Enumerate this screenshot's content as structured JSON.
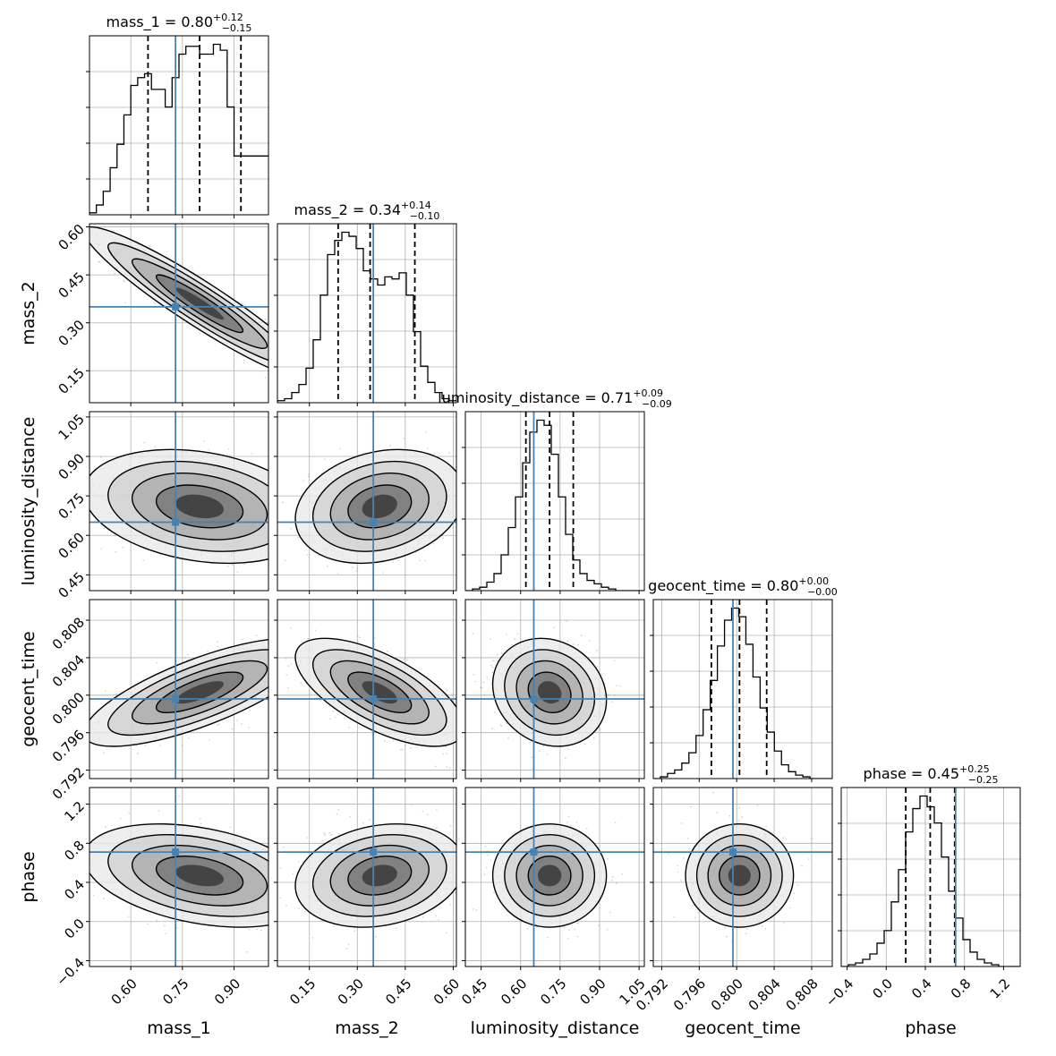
{
  "chart_data": {
    "type": "corner",
    "parameters": [
      "mass_1",
      "mass_2",
      "luminosity_distance",
      "geocent_time",
      "phase"
    ],
    "truths": {
      "mass_1": 0.73,
      "mass_2": 0.35,
      "luminosity_distance": 0.65,
      "geocent_time": 0.7996,
      "phase": 0.71
    },
    "truth_color": "#4682b4",
    "grid": true,
    "diagonal": [
      {
        "param": "mass_1",
        "title": {
          "name": "mass_1",
          "median": "0.80",
          "plus": "+0.12",
          "minus": "−0.15"
        },
        "range": [
          0.48,
          1.0
        ],
        "quantiles": [
          0.65,
          0.8,
          0.92
        ],
        "bin_edges": [
          0.48,
          0.5,
          0.52,
          0.54,
          0.56,
          0.58,
          0.6,
          0.62,
          0.64,
          0.66,
          0.68,
          0.7,
          0.72,
          0.74,
          0.76,
          0.78,
          0.8,
          0.82,
          0.84,
          0.86,
          0.88,
          0.9,
          0.92,
          0.94,
          0.96,
          0.98,
          1.0
        ],
        "counts": [
          0.01,
          0.05,
          0.12,
          0.24,
          0.36,
          0.51,
          0.66,
          0.7,
          0.72,
          0.64,
          0.64,
          0.55,
          0.7,
          0.82,
          0.86,
          0.86,
          0.82,
          0.82,
          0.87,
          0.84,
          0.55,
          0.3,
          0.3,
          0.3,
          0.3,
          0.3
        ]
      },
      {
        "param": "mass_2",
        "title": {
          "name": "mass_2",
          "median": "0.34",
          "plus": "+0.14",
          "minus": "−0.10"
        },
        "range": [
          0.05,
          0.61
        ],
        "quantiles": [
          0.24,
          0.34,
          0.48
        ],
        "bin_edges": [
          0.05,
          0.0724,
          0.0948,
          0.1172,
          0.1396,
          0.162,
          0.1844,
          0.2068,
          0.2292,
          0.2516,
          0.274,
          0.2964,
          0.3188,
          0.3412,
          0.3636,
          0.386,
          0.4084,
          0.4308,
          0.4532,
          0.4756,
          0.498,
          0.5204,
          0.5428,
          0.5652,
          0.5876,
          0.61
        ],
        "counts": [
          0.01,
          0.02,
          0.05,
          0.09,
          0.17,
          0.31,
          0.53,
          0.73,
          0.8,
          0.84,
          0.82,
          0.76,
          0.65,
          0.61,
          0.58,
          0.62,
          0.61,
          0.64,
          0.53,
          0.35,
          0.18,
          0.1,
          0.05,
          0.02,
          0.01
        ]
      },
      {
        "param": "luminosity_distance",
        "title": {
          "name": "luminosity_distance",
          "median": "0.71",
          "plus": "+0.09",
          "minus": "−0.09"
        },
        "range": [
          0.39,
          1.07
        ],
        "quantiles": [
          0.62,
          0.71,
          0.8
        ],
        "bin_edges": [
          0.39,
          0.4172,
          0.4444,
          0.4716,
          0.4988,
          0.526,
          0.5532,
          0.5804,
          0.6076,
          0.6348,
          0.662,
          0.6892,
          0.7164,
          0.7436,
          0.7708,
          0.798,
          0.8252,
          0.8524,
          0.8796,
          0.9068,
          0.934,
          0.9612,
          0.9884,
          1.0156,
          1.0428,
          1.07
        ],
        "counts": [
          0.0,
          0.01,
          0.02,
          0.05,
          0.1,
          0.21,
          0.37,
          0.55,
          0.75,
          0.93,
          1.0,
          0.97,
          0.8,
          0.55,
          0.33,
          0.18,
          0.1,
          0.06,
          0.04,
          0.02,
          0.01,
          0.0,
          0.0,
          0.0,
          0.0
        ]
      },
      {
        "param": "geocent_time",
        "title": {
          "name": "geocent_time",
          "median": "0.80",
          "plus": "+0.00",
          "minus": "−0.00"
        },
        "range": [
          0.7911,
          0.8102
        ],
        "quantiles": [
          0.7973,
          0.8003,
          0.8032
        ],
        "bin_edges": [
          0.7911,
          0.79186,
          0.79262,
          0.79338,
          0.79414,
          0.7949,
          0.79566,
          0.79642,
          0.79718,
          0.79794,
          0.7987,
          0.79946,
          0.80022,
          0.80098,
          0.80174,
          0.8025,
          0.80326,
          0.80402,
          0.80478,
          0.80554,
          0.8063,
          0.80706,
          0.80782,
          0.80858,
          0.80934,
          0.8101
        ],
        "counts": [
          0.0,
          0.01,
          0.03,
          0.05,
          0.09,
          0.15,
          0.25,
          0.4,
          0.57,
          0.77,
          0.92,
          0.99,
          0.94,
          0.78,
          0.59,
          0.41,
          0.27,
          0.16,
          0.08,
          0.04,
          0.02,
          0.01,
          0.0,
          0.0,
          0.0
        ]
      },
      {
        "param": "phase",
        "title": {
          "name": "phase",
          "median": "0.45",
          "plus": "+0.25",
          "minus": "−0.25"
        },
        "range": [
          -0.46,
          1.37
        ],
        "quantiles": [
          0.2,
          0.45,
          0.7
        ],
        "bin_edges": [
          -0.46,
          -0.3868,
          -0.3136,
          -0.2404,
          -0.1672,
          -0.094,
          -0.0208,
          0.0524,
          0.1256,
          0.1988,
          0.272,
          0.3452,
          0.4184,
          0.4916,
          0.5648,
          0.638,
          0.7112,
          0.7844,
          0.8576,
          0.9308,
          1.004,
          1.0772,
          1.1504,
          1.2236,
          1.2968,
          1.37
        ],
        "counts": [
          0.0,
          0.01,
          0.02,
          0.04,
          0.07,
          0.13,
          0.2,
          0.36,
          0.54,
          0.75,
          0.88,
          0.95,
          0.89,
          0.8,
          0.61,
          0.42,
          0.27,
          0.15,
          0.08,
          0.04,
          0.02,
          0.01,
          0.0,
          0.0,
          0.0
        ]
      }
    ],
    "ticks": {
      "mass_1": {
        "values": [
          0.6,
          0.75,
          0.9
        ],
        "labels": [
          "0.60",
          "0.75",
          "0.90"
        ]
      },
      "mass_2": {
        "values": [
          0.15,
          0.3,
          0.45,
          0.6
        ],
        "labels": [
          "0.15",
          "0.30",
          "0.45",
          "0.60"
        ]
      },
      "luminosity_distance": {
        "values": [
          0.45,
          0.6,
          0.75,
          0.9,
          1.05
        ],
        "labels": [
          "0.45",
          "0.60",
          "0.75",
          "0.90",
          "1.05"
        ]
      },
      "geocent_time": {
        "values": [
          0.792,
          0.796,
          0.8,
          0.804,
          0.808
        ],
        "labels": [
          "0.792",
          "0.796",
          "0.800",
          "0.804",
          "0.808"
        ]
      },
      "phase": {
        "values": [
          -0.4,
          0.0,
          0.4,
          0.8,
          1.2
        ],
        "labels": [
          "−0.4",
          "0.0",
          "0.4",
          "0.8",
          "1.2"
        ]
      }
    },
    "axis_labels": {
      "mass_1": "mass_1",
      "mass_2": "mass_2",
      "luminosity_distance": "luminosity_distance",
      "geocent_time": "geocent_time",
      "phase": "phase"
    },
    "pairs": [
      {
        "x": "mass_1",
        "y": "mass_2",
        "center": [
          0.8,
          0.36
        ],
        "sd": [
          0.14,
          0.1
        ],
        "rho": -0.94
      },
      {
        "x": "mass_1",
        "y": "luminosity_distance",
        "center": [
          0.8,
          0.71
        ],
        "sd": [
          0.14,
          0.09
        ],
        "rho": -0.25
      },
      {
        "x": "mass_2",
        "y": "luminosity_distance",
        "center": [
          0.37,
          0.71
        ],
        "sd": [
          0.11,
          0.09
        ],
        "rho": 0.22
      },
      {
        "x": "mass_1",
        "y": "geocent_time",
        "center": [
          0.8,
          0.8003
        ],
        "sd": [
          0.14,
          0.0024
        ],
        "rho": 0.75
      },
      {
        "x": "mass_2",
        "y": "geocent_time",
        "center": [
          0.37,
          0.8003
        ],
        "sd": [
          0.11,
          0.0024
        ],
        "rho": -0.65
      },
      {
        "x": "luminosity_distance",
        "y": "geocent_time",
        "center": [
          0.71,
          0.8003
        ],
        "sd": [
          0.09,
          0.0024
        ],
        "rho": -0.15
      },
      {
        "x": "mass_1",
        "y": "phase",
        "center": [
          0.8,
          0.47
        ],
        "sd": [
          0.14,
          0.22
        ],
        "rho": -0.35
      },
      {
        "x": "mass_2",
        "y": "phase",
        "center": [
          0.37,
          0.47
        ],
        "sd": [
          0.11,
          0.22
        ],
        "rho": 0.2
      },
      {
        "x": "luminosity_distance",
        "y": "phase",
        "center": [
          0.71,
          0.47
        ],
        "sd": [
          0.09,
          0.22
        ],
        "rho": 0.0
      },
      {
        "x": "geocent_time",
        "y": "phase",
        "center": [
          0.8003,
          0.47
        ],
        "sd": [
          0.0024,
          0.22
        ],
        "rho": 0.0
      }
    ]
  }
}
